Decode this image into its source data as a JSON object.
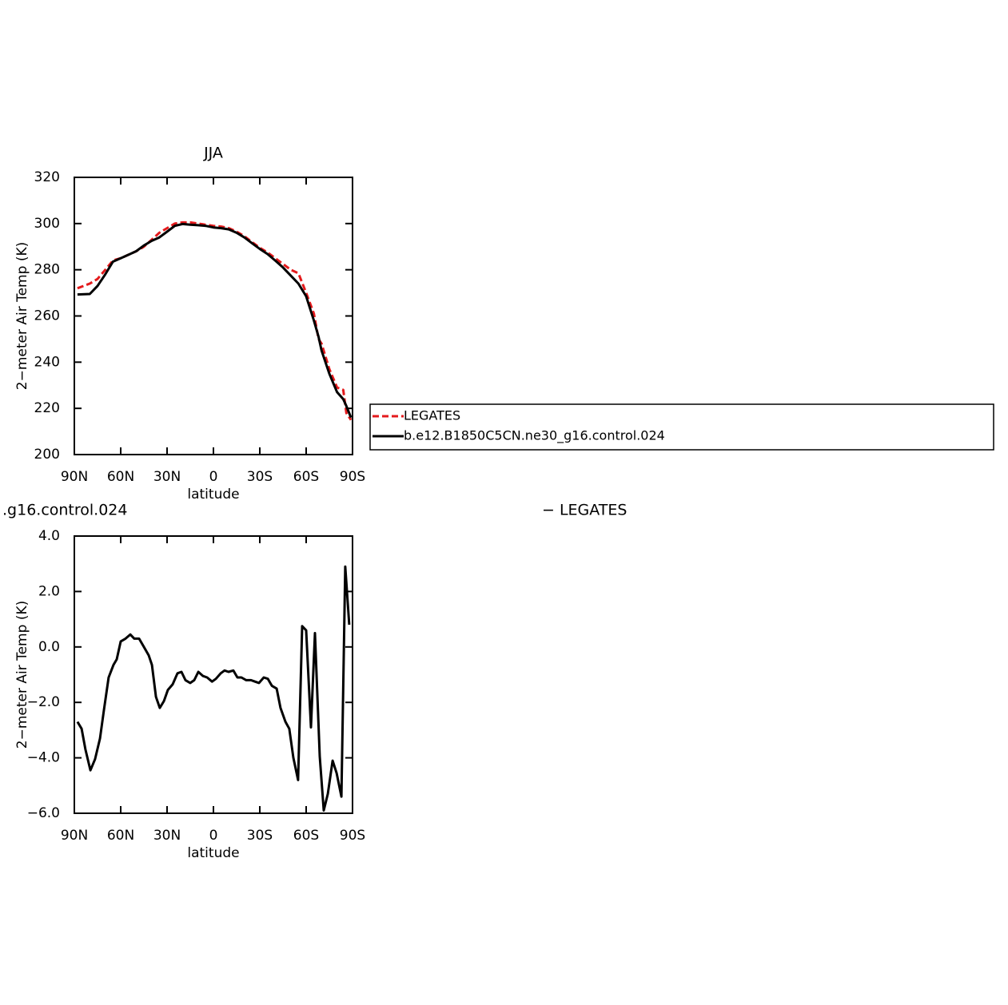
{
  "chart_data": [
    {
      "type": "line",
      "title": "JJA",
      "xlabel": "latitude",
      "ylabel": "2−meter Air Temp (K)",
      "x": [
        88,
        80,
        75,
        70,
        65,
        60,
        55,
        50,
        45,
        40,
        35,
        30,
        25,
        20,
        15,
        10,
        5,
        0,
        -5,
        -10,
        -15,
        -20,
        -25,
        -30,
        -35,
        -40,
        -45,
        -50,
        -55,
        -60,
        -65,
        -68,
        -70,
        -75,
        -80,
        -84,
        -86,
        -89
      ],
      "series": [
        {
          "name": "LEGATES",
          "color": "#e41a1c",
          "dashed": true,
          "values": [
            272,
            274,
            276,
            280,
            284,
            285,
            286.5,
            288,
            290,
            293,
            296,
            298,
            300,
            300.5,
            300.5,
            300,
            299.5,
            299,
            298.7,
            298,
            296.5,
            294.5,
            292,
            289.5,
            287.5,
            285,
            282.5,
            280,
            278.5,
            270,
            261,
            250,
            248,
            237,
            229,
            228,
            218,
            215
          ]
        },
        {
          "name": "b.e12.B1850C5CN.ne30_g16.control.024",
          "color": "#000000",
          "dashed": false,
          "values": [
            269.3,
            269.5,
            273,
            278,
            283.5,
            285,
            286.5,
            288,
            290.5,
            292.5,
            294,
            296.5,
            299,
            299.8,
            299.5,
            299.3,
            299,
            298.3,
            298,
            297.5,
            296,
            294,
            291.5,
            289,
            286.8,
            284,
            281,
            277.5,
            274,
            268.5,
            258,
            251,
            245,
            235,
            227,
            224,
            221,
            216
          ]
        }
      ],
      "xlim": [
        90,
        -90
      ],
      "xticks": [
        {
          "value": 90,
          "label": "90N"
        },
        {
          "value": 60,
          "label": "60N"
        },
        {
          "value": 30,
          "label": "30N"
        },
        0,
        {
          "value": -30,
          "label": "30S"
        },
        {
          "value": -60,
          "label": "60S"
        },
        {
          "value": -90,
          "label": "90S"
        }
      ],
      "ylim": [
        200,
        320
      ],
      "yticks": [
        200,
        220,
        240,
        260,
        280,
        300,
        320
      ],
      "legend": "right"
    },
    {
      "type": "line",
      "title_left": ".g16.control.024",
      "title_right": "− LEGATES",
      "xlabel": "latitude",
      "ylabel": "2−meter Air Temp (K)",
      "x": [
        88,
        85.3,
        82.8,
        79.6,
        76.6,
        73.4,
        70.9,
        67.8,
        64.7,
        62.6,
        60,
        56.9,
        53.8,
        51.2,
        48.1,
        45,
        41.9,
        39.8,
        37.2,
        34.7,
        32,
        29.5,
        26.4,
        23.3,
        20.7,
        18.1,
        15,
        12.4,
        9.8,
        6.7,
        4.1,
        0.9,
        -1.6,
        -4.7,
        -7.2,
        -9.8,
        -12.9,
        -15.5,
        -18.1,
        -21.2,
        -24.3,
        -26.9,
        -29.5,
        -32.6,
        -35.2,
        -37.8,
        -40.9,
        -43.4,
        -46.6,
        -49.1,
        -51.7,
        -54.8,
        -57.4,
        -60,
        -63.1,
        -65.7,
        -68.8,
        -71.4,
        -74,
        -77.1,
        -79.7,
        -82.8,
        -85.3,
        -87.9
      ],
      "series": [
        {
          "color": "#000000",
          "dashed": false,
          "values": [
            -2.7,
            -2.95,
            -3.7,
            -4.45,
            -4.05,
            -3.3,
            -2.3,
            -1.1,
            -0.65,
            -0.45,
            0.2,
            0.3,
            0.45,
            0.3,
            0.3,
            0.0,
            -0.3,
            -0.65,
            -1.8,
            -2.2,
            -1.95,
            -1.55,
            -1.35,
            -0.95,
            -0.9,
            -1.2,
            -1.3,
            -1.2,
            -0.9,
            -1.05,
            -1.1,
            -1.25,
            -1.15,
            -0.95,
            -0.85,
            -0.9,
            -0.85,
            -1.1,
            -1.1,
            -1.2,
            -1.2,
            -1.25,
            -1.3,
            -1.1,
            -1.15,
            -1.4,
            -1.5,
            -2.2,
            -2.7,
            -2.95,
            -4.0,
            -4.8,
            0.75,
            0.6,
            -2.9,
            0.5,
            -3.95,
            -5.9,
            -5.3,
            -4.1,
            -4.55,
            -5.4,
            2.9,
            0.8
          ]
        }
      ],
      "xlim": [
        90,
        -90
      ],
      "xticks": [
        {
          "value": 90,
          "label": "90N"
        },
        {
          "value": 60,
          "label": "60N"
        },
        {
          "value": 30,
          "label": "30N"
        },
        0,
        {
          "value": -30,
          "label": "30S"
        },
        {
          "value": -60,
          "label": "60S"
        },
        {
          "value": -90,
          "label": "90S"
        }
      ],
      "ylim": [
        -6,
        4
      ],
      "yticks": [
        {
          "value": -6,
          "label": "−6.0"
        },
        {
          "value": -4,
          "label": "−4.0"
        },
        {
          "value": -2,
          "label": "−2.0"
        },
        {
          "value": 0,
          "label": "0.0"
        },
        {
          "value": 2,
          "label": "2.0"
        },
        {
          "value": 4,
          "label": "4.0"
        }
      ]
    }
  ]
}
